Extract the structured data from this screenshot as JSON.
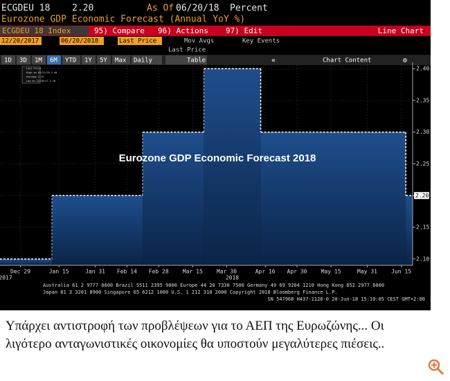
{
  "header": {
    "ticker": "ECGDEU 18",
    "price": "2.20",
    "as_of_label": "As Of",
    "as_of_date": "06/20/18",
    "unit": "Percent",
    "subtitle": "Eurozone GDP Economic Forecast (Annual YoY %)"
  },
  "menu": {
    "security": "ECGDEU 18 Index",
    "compare": "95) Compare",
    "actions": "96) Actions",
    "edit": "97) Edit",
    "view": "Line Chart"
  },
  "toolbar": {
    "start_date": "12/20/2017",
    "end_date": "06/20/2018",
    "field": "Last Price",
    "mov_avgs": "Mov Avgs",
    "key_events": "Key Events",
    "field_label": "Last Price",
    "periods": [
      "1D",
      "3D",
      "1M",
      "6M",
      "YTD",
      "1Y",
      "5Y",
      "Max"
    ],
    "frequency": "Daily",
    "table": "Table",
    "chart_content": "Chart Content"
  },
  "legend_box": [
    "Last Price",
    "High on 03/21/18 2.40",
    "Average 2.25",
    "Low on 12/20/17 2.10"
  ],
  "chart_data": {
    "type": "step-area",
    "title": "Eurozone GDP Economic Forecast 2018",
    "x": [
      "2017-12-20",
      "2018-01-12",
      "2018-02-21",
      "2018-03-20",
      "2018-04-14",
      "2018-06-17",
      "2018-06-20"
    ],
    "series": [
      {
        "name": "Last Price",
        "color": "#1f4e8c",
        "values": [
          2.1,
          2.2,
          2.3,
          2.4,
          2.3,
          2.2,
          2.2
        ],
        "value_labels": [
          null,
          null,
          null,
          null,
          null,
          null,
          "2.20"
        ]
      }
    ],
    "xlim": [
      "2017-12-20",
      "2018-06-20"
    ],
    "xticks": [
      {
        "value": "2017-12-29",
        "label": "Dec 29"
      },
      {
        "value": "2018-01-15",
        "label": "Jan 15"
      },
      {
        "value": "2018-01-31",
        "label": "Jan 31"
      },
      {
        "value": "2018-02-14",
        "label": "Feb 14"
      },
      {
        "value": "2018-02-28",
        "label": "Feb 28"
      },
      {
        "value": "2018-03-15",
        "label": "Mar 15"
      },
      {
        "value": "2018-03-30",
        "label": "Mar 30"
      },
      {
        "value": "2018-04-16",
        "label": "Apr 16"
      },
      {
        "value": "2018-04-30",
        "label": "Apr 30"
      },
      {
        "value": "2018-05-15",
        "label": "May 15"
      },
      {
        "value": "2018-05-31",
        "label": "May 31"
      },
      {
        "value": "2018-06-15",
        "label": "Jun 15"
      }
    ],
    "year_labels": [
      {
        "value": "2017-12-20",
        "label": "2017"
      },
      {
        "value": "2018-03-30",
        "label": "2018"
      }
    ],
    "ylim": [
      2.09,
      2.41
    ],
    "yticks": [
      {
        "value": 2.1,
        "label": "2.10"
      },
      {
        "value": 2.15,
        "label": "2.15"
      },
      {
        "value": 2.2,
        "label": "2.20"
      },
      {
        "value": 2.25,
        "label": "2.25"
      },
      {
        "value": 2.3,
        "label": "2.30"
      },
      {
        "value": 2.35,
        "label": "2.35"
      },
      {
        "value": 2.4,
        "label": "2.40"
      }
    ],
    "grid": true
  },
  "footer": [
    "Australia 61 2 9777 8600 Brazil 5511 2395 9000 Europe 44 20 7330 7500 Germany 49 69 9204 1210 Hong Kong 852 2977 6000",
    "Japan 81 3 3201 8900          Singapore 65 6212 1000          U.S. 1 212 318 2000          Copyright 2018 Bloomberg Finance L.P.",
    "SN 547968 H437-1128-0 20-Jun-18 15:10:05 CEST GMT+2:00"
  ],
  "caption": [
    "Υπάρχει αντιστροφή των προβλέψεων για το ΑΕΠ της Ευρωζώνης...  Οι",
    "λιγότερο ανταγωνιστικές οικονομίες θα υποστούν μεγαλύτερες πιέσεις.."
  ]
}
